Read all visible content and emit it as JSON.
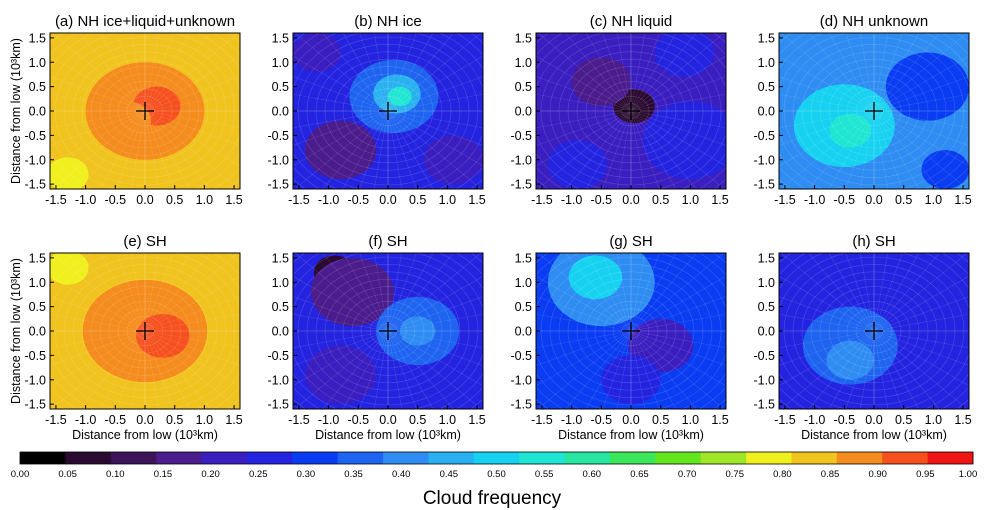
{
  "figure": {
    "colorbar_label": "Cloud frequency",
    "x_axis_label": "Distance from low (10³km)",
    "y_axis_label": "Distance from low (10³km)"
  },
  "colorbar": {
    "ticks": [
      "0.00",
      "0.05",
      "0.10",
      "0.15",
      "0.20",
      "0.25",
      "0.30",
      "0.35",
      "0.40",
      "0.45",
      "0.50",
      "0.55",
      "0.60",
      "0.65",
      "0.70",
      "0.75",
      "0.80",
      "0.85",
      "0.90",
      "0.95",
      "1.00"
    ],
    "colors": [
      "#000000",
      "#2a0a30",
      "#3d1458",
      "#4a1c8c",
      "#3a1ec0",
      "#2424e0",
      "#0a3cf2",
      "#1e64f0",
      "#2e8cf2",
      "#28b0f0",
      "#16d2f0",
      "#1ee6d2",
      "#28e6a0",
      "#3ce65a",
      "#64e61e",
      "#a0e628",
      "#f0f01e",
      "#f0c31e",
      "#f58c1e",
      "#f5501e",
      "#f01414"
    ]
  },
  "chart_data": [
    {
      "type": "heatmap",
      "title": "(a) NH ice+liquid+unknown",
      "hemisphere": "NH",
      "variable": "ice+liquid+unknown",
      "xlim": [
        -1.6,
        1.6
      ],
      "ylim": [
        -1.6,
        1.6
      ],
      "x_ticks": [
        "-1.5",
        "-1.0",
        "-0.5",
        "0.0",
        "0.5",
        "1.0",
        "1.5"
      ],
      "y_ticks": [
        "1.5",
        "1.0",
        "0.5",
        "0.0",
        "-0.5",
        "-1.0",
        "-1.5"
      ],
      "background_value": 0.87,
      "center_marker": [
        0.0,
        0.0
      ],
      "features": [
        {
          "x": 0.0,
          "y": 0.0,
          "radius": 1.0,
          "value": 0.93
        },
        {
          "x": 0.2,
          "y": 0.1,
          "radius": 0.4,
          "value": 0.96
        },
        {
          "x": -0.3,
          "y": -0.2,
          "radius": 0.4,
          "value": 0.95
        },
        {
          "x": -1.3,
          "y": -1.3,
          "radius": 0.35,
          "value": 0.82
        }
      ]
    },
    {
      "type": "heatmap",
      "title": "(b) NH ice",
      "hemisphere": "NH",
      "variable": "ice",
      "xlim": [
        -1.6,
        1.6
      ],
      "ylim": [
        -1.6,
        1.6
      ],
      "x_ticks": [
        "-1.5",
        "-1.0",
        "-0.5",
        "0.0",
        "0.5",
        "1.0",
        "1.5"
      ],
      "y_ticks": [
        "1.5",
        "1.0",
        "0.5",
        "0.0",
        "-0.5",
        "-1.0",
        "-1.5"
      ],
      "background_value": 0.27,
      "center_marker": [
        0.0,
        0.0
      ],
      "features": [
        {
          "x": 0.1,
          "y": 0.3,
          "radius": 0.75,
          "value": 0.37
        },
        {
          "x": 0.15,
          "y": 0.35,
          "radius": 0.4,
          "value": 0.46
        },
        {
          "x": 0.2,
          "y": 0.3,
          "radius": 0.2,
          "value": 0.56
        },
        {
          "x": -0.8,
          "y": -0.8,
          "radius": 0.6,
          "value": 0.17
        },
        {
          "x": 1.1,
          "y": -1.0,
          "radius": 0.5,
          "value": 0.2
        },
        {
          "x": -1.2,
          "y": 1.2,
          "radius": 0.4,
          "value": 0.22
        }
      ]
    },
    {
      "type": "heatmap",
      "title": "(c) NH liquid",
      "hemisphere": "NH",
      "variable": "liquid",
      "xlim": [
        -1.6,
        1.6
      ],
      "ylim": [
        -1.6,
        1.6
      ],
      "x_ticks": [
        "-1.5",
        "-1.0",
        "-0.5",
        "0.0",
        "0.5",
        "1.0",
        "1.5"
      ],
      "y_ticks": [
        "1.5",
        "1.0",
        "0.5",
        "0.0",
        "-0.5",
        "-1.0",
        "-1.5"
      ],
      "background_value": 0.22,
      "center_marker": [
        0.0,
        0.0
      ],
      "features": [
        {
          "x": 0.05,
          "y": 0.1,
          "radius": 0.35,
          "value": 0.07
        },
        {
          "x": -0.5,
          "y": 0.6,
          "radius": 0.5,
          "value": 0.16
        },
        {
          "x": 1.0,
          "y": -0.6,
          "radius": 0.8,
          "value": 0.3
        },
        {
          "x": 0.9,
          "y": 1.2,
          "radius": 0.5,
          "value": 0.28
        },
        {
          "x": -0.9,
          "y": -1.1,
          "radius": 0.5,
          "value": 0.26
        }
      ]
    },
    {
      "type": "heatmap",
      "title": "(d) NH unknown",
      "hemisphere": "NH",
      "variable": "unknown",
      "xlim": [
        -1.6,
        1.6
      ],
      "ylim": [
        -1.6,
        1.6
      ],
      "x_ticks": [
        "-1.5",
        "-1.0",
        "-0.5",
        "0.0",
        "0.5",
        "1.0",
        "1.5"
      ],
      "y_ticks": [
        "1.5",
        "1.0",
        "0.5",
        "0.0",
        "-0.5",
        "-1.0",
        "-1.5"
      ],
      "background_value": 0.4,
      "center_marker": [
        0.0,
        0.0
      ],
      "features": [
        {
          "x": -0.5,
          "y": -0.3,
          "radius": 0.85,
          "value": 0.5
        },
        {
          "x": -0.4,
          "y": -0.4,
          "radius": 0.35,
          "value": 0.58
        },
        {
          "x": 0.9,
          "y": 0.5,
          "radius": 0.7,
          "value": 0.31
        },
        {
          "x": 1.2,
          "y": -1.2,
          "radius": 0.4,
          "value": 0.34
        }
      ]
    },
    {
      "type": "heatmap",
      "title": "(e) SH",
      "hemisphere": "SH",
      "variable": "ice+liquid+unknown",
      "xlim": [
        -1.6,
        1.6
      ],
      "ylim": [
        -1.6,
        1.6
      ],
      "x_ticks": [
        "-1.5",
        "-1.0",
        "-0.5",
        "0.0",
        "0.5",
        "1.0",
        "1.5"
      ],
      "y_ticks": [
        "1.5",
        "1.0",
        "0.5",
        "0.0",
        "-0.5",
        "-1.0",
        "-1.5"
      ],
      "background_value": 0.88,
      "center_marker": [
        0.0,
        0.0
      ],
      "features": [
        {
          "x": 0.0,
          "y": 0.0,
          "radius": 1.05,
          "value": 0.94
        },
        {
          "x": 0.3,
          "y": -0.1,
          "radius": 0.45,
          "value": 0.96
        },
        {
          "x": -1.3,
          "y": 1.3,
          "radius": 0.35,
          "value": 0.83
        }
      ]
    },
    {
      "type": "heatmap",
      "title": "(f) SH",
      "hemisphere": "SH",
      "variable": "ice",
      "xlim": [
        -1.6,
        1.6
      ],
      "ylim": [
        -1.6,
        1.6
      ],
      "x_ticks": [
        "-1.5",
        "-1.0",
        "-0.5",
        "0.0",
        "0.5",
        "1.0",
        "1.5"
      ],
      "y_ticks": [
        "1.5",
        "1.0",
        "0.5",
        "0.0",
        "-0.5",
        "-1.0",
        "-1.5"
      ],
      "background_value": 0.26,
      "center_marker": [
        0.0,
        0.0
      ],
      "features": [
        {
          "x": -0.9,
          "y": 1.2,
          "radius": 0.35,
          "value": 0.07
        },
        {
          "x": -0.6,
          "y": 0.8,
          "radius": 0.7,
          "value": 0.17
        },
        {
          "x": 0.5,
          "y": 0.0,
          "radius": 0.7,
          "value": 0.36
        },
        {
          "x": 0.5,
          "y": 0.0,
          "radius": 0.3,
          "value": 0.44
        },
        {
          "x": -0.8,
          "y": -0.9,
          "radius": 0.6,
          "value": 0.22
        }
      ]
    },
    {
      "type": "heatmap",
      "title": "(g) SH",
      "hemisphere": "SH",
      "variable": "liquid",
      "xlim": [
        -1.6,
        1.6
      ],
      "ylim": [
        -1.6,
        1.6
      ],
      "x_ticks": [
        "-1.5",
        "-1.0",
        "-0.5",
        "0.0",
        "0.5",
        "1.0",
        "1.5"
      ],
      "y_ticks": [
        "1.5",
        "1.0",
        "0.5",
        "0.0",
        "-0.5",
        "-1.0",
        "-1.5"
      ],
      "background_value": 0.32,
      "center_marker": [
        0.0,
        0.0
      ],
      "features": [
        {
          "x": -0.5,
          "y": 1.0,
          "radius": 0.9,
          "value": 0.44
        },
        {
          "x": -0.6,
          "y": 1.1,
          "radius": 0.45,
          "value": 0.52
        },
        {
          "x": 0.5,
          "y": -0.3,
          "radius": 0.55,
          "value": 0.24
        },
        {
          "x": 0.0,
          "y": -1.0,
          "radius": 0.5,
          "value": 0.3
        }
      ]
    },
    {
      "type": "heatmap",
      "title": "(h) SH",
      "hemisphere": "SH",
      "variable": "unknown",
      "xlim": [
        -1.6,
        1.6
      ],
      "ylim": [
        -1.6,
        1.6
      ],
      "x_ticks": [
        "-1.5",
        "-1.0",
        "-0.5",
        "0.0",
        "0.5",
        "1.0",
        "1.5"
      ],
      "y_ticks": [
        "1.5",
        "1.0",
        "0.5",
        "0.0",
        "-0.5",
        "-1.0",
        "-1.5"
      ],
      "background_value": 0.29,
      "center_marker": [
        0.0,
        0.0
      ],
      "features": [
        {
          "x": -0.4,
          "y": -0.3,
          "radius": 0.8,
          "value": 0.36
        },
        {
          "x": -0.4,
          "y": -0.6,
          "radius": 0.4,
          "value": 0.42
        },
        {
          "x": 0.9,
          "y": 1.0,
          "radius": 0.6,
          "value": 0.25
        },
        {
          "x": -1.1,
          "y": 1.2,
          "radius": 0.45,
          "value": 0.27
        }
      ]
    }
  ]
}
